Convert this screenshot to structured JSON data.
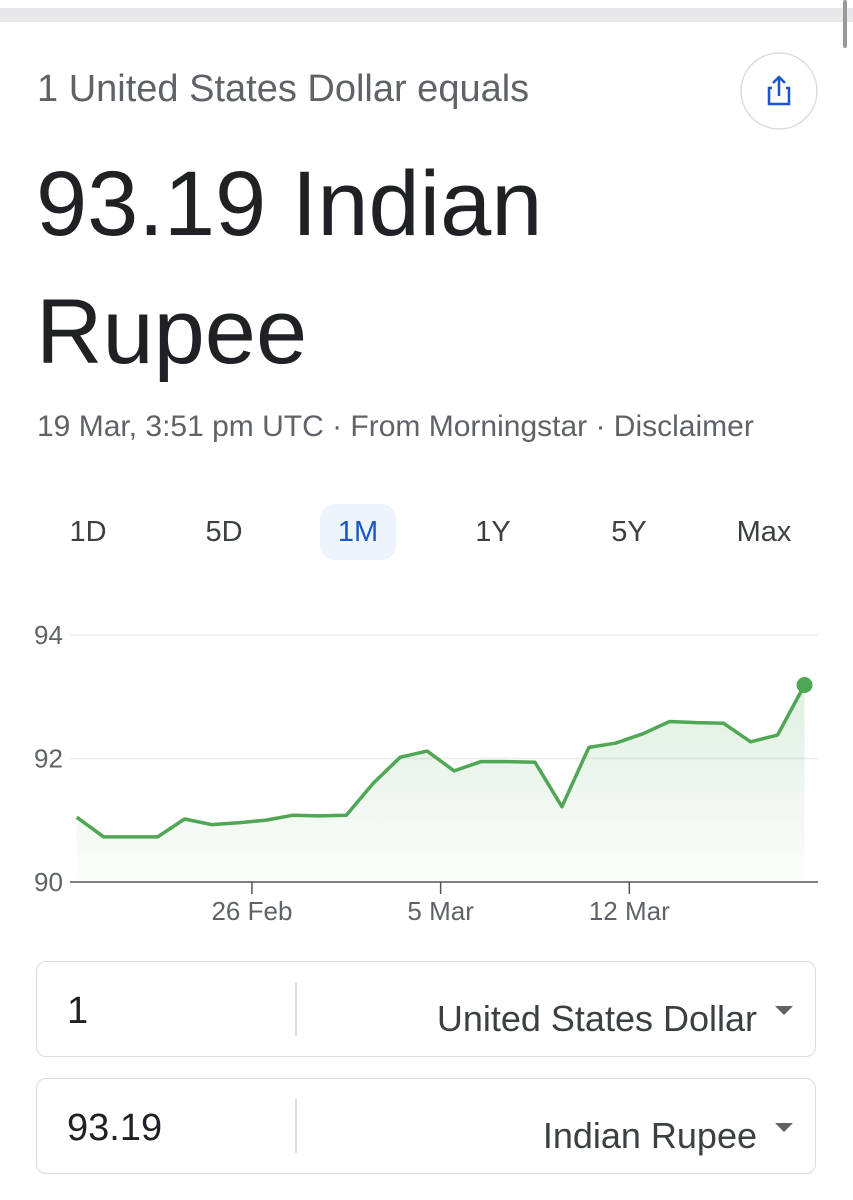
{
  "header": {
    "subtitle": "1 United States Dollar equals",
    "title": "93.19 Indian Rupee",
    "meta": "19 Mar, 3:51 pm UTC · From Morningstar · Disclaimer"
  },
  "tabs": {
    "items": [
      "1D",
      "5D",
      "1M",
      "1Y",
      "5Y",
      "Max"
    ],
    "selected": "1M"
  },
  "chart_data": {
    "type": "area",
    "color": "#4fa756",
    "x": [
      0.5,
      1.5,
      2.5,
      3.5,
      4.5,
      5.5,
      6.5,
      7.5,
      8.5,
      9.5,
      10.5,
      11.5,
      12.5,
      13.5,
      14.5,
      15.5,
      16.5,
      17.5,
      18.5,
      19.5,
      20.5,
      21.5,
      22.5,
      23.5,
      24.5,
      25.5,
      26.5,
      27.5
    ],
    "values": [
      91.05,
      90.73,
      90.73,
      90.73,
      91.02,
      90.93,
      90.96,
      91.0,
      91.08,
      91.07,
      91.08,
      91.6,
      92.02,
      92.12,
      91.8,
      91.95,
      91.95,
      91.94,
      91.22,
      92.18,
      92.25,
      92.4,
      92.6,
      92.58,
      92.57,
      92.27,
      92.38,
      93.19
    ],
    "xlim": [
      0.25,
      28
    ],
    "xticks": [
      {
        "value": 7,
        "label": "26 Feb"
      },
      {
        "value": 14,
        "label": "5 Mar"
      },
      {
        "value": 21,
        "label": "12 Mar"
      }
    ],
    "ylim": [
      90,
      94
    ],
    "yticks": [
      90,
      92,
      94
    ],
    "grid": true
  },
  "converter": {
    "from": {
      "amount": "1",
      "currency": "United States Dollar"
    },
    "to": {
      "amount": "93.19",
      "currency": "Indian Rupee"
    }
  }
}
